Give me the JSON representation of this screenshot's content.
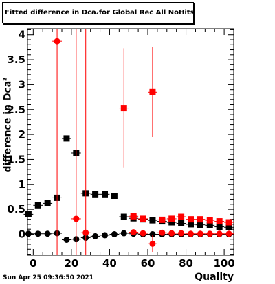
{
  "chart_data": {
    "type": "scatter",
    "title": "Fitted difference in Dca",
    "title_subscript": "z",
    "title_suffix": " for Global Rec All NoHits",
    "ylabel": "difference in Dca",
    "ylabel_subscript": "z",
    "xlabel": "Quality",
    "xlim": [
      -3,
      105
    ],
    "ylim": [
      -0.42,
      4.12
    ],
    "x_ticks": [
      "0",
      "20",
      "40",
      "60",
      "80",
      "100"
    ],
    "y_ticks": [
      "0",
      "0.5",
      "1",
      "1.5",
      "2",
      "2.5",
      "3",
      "3.5",
      "4"
    ],
    "x_tick_values": [
      0,
      20,
      40,
      60,
      80,
      100
    ],
    "y_tick_values": [
      0,
      0.5,
      1,
      1.5,
      2,
      2.5,
      3,
      3.5,
      4
    ],
    "grid": false,
    "series": [
      {
        "color": "#000000",
        "marker": "square",
        "x": [
          -2.5,
          2.5,
          7.5,
          12.5,
          17.5,
          22.5,
          27.5,
          32.5,
          37.5,
          42.5,
          47.5,
          52.5,
          57.5,
          62.5,
          67.5,
          72.5,
          77.5,
          82.5,
          87.5,
          92.5,
          97.5,
          102.5
        ],
        "y": [
          0.4,
          0.58,
          0.62,
          0.73,
          1.92,
          1.63,
          0.82,
          0.8,
          0.8,
          0.77,
          0.35,
          0.32,
          0.3,
          0.28,
          0.26,
          0.24,
          0.22,
          0.2,
          0.19,
          0.18,
          0.15,
          0.14
        ],
        "yerr": [
          0.01,
          0.01,
          0.01,
          0.01,
          0.02,
          0.02,
          0.01,
          0.01,
          0.01,
          0.01,
          0.01,
          0.01,
          0.01,
          0.01,
          0.01,
          0.01,
          0.01,
          0.01,
          0.01,
          0.01,
          0.01,
          0.01
        ]
      },
      {
        "color": "#ff0000",
        "marker": "square",
        "x": [
          47.5,
          52.5,
          57.5,
          62.5,
          67.5,
          72.5,
          77.5,
          82.5,
          87.5,
          92.5,
          97.5,
          102.5
        ],
        "y": [
          2.53,
          0.36,
          0.31,
          2.85,
          0.29,
          0.31,
          0.35,
          0.3,
          0.3,
          0.28,
          0.26,
          0.24
        ],
        "yerr": [
          1.2,
          0.03,
          0.02,
          0.9,
          0.02,
          0.02,
          0.02,
          0.02,
          0.02,
          0.02,
          0.02,
          0.02
        ]
      },
      {
        "color": "#000000",
        "marker": "circle",
        "x": [
          -2.5,
          2.5,
          7.5,
          12.5,
          17.5,
          22.5,
          27.5,
          32.5,
          37.5,
          42.5,
          47.5,
          52.5,
          57.5,
          62.5,
          67.5,
          72.5,
          77.5,
          82.5,
          87.5,
          92.5,
          97.5,
          102.5
        ],
        "y": [
          0.01,
          0.01,
          0.01,
          0.02,
          -0.11,
          -0.1,
          -0.07,
          -0.04,
          -0.02,
          0.0,
          0.02,
          0.01,
          0.0,
          0.0,
          0.0,
          0.0,
          0.0,
          0.0,
          0.0,
          0.0,
          0.0,
          0.0
        ],
        "yerr": [
          0.01,
          0.01,
          0.01,
          0.01,
          0.02,
          0.02,
          0.02,
          0.01,
          0.01,
          0.01,
          0.01,
          0.01,
          0.01,
          0.01,
          0.01,
          0.01,
          0.01,
          0.01,
          0.01,
          0.01,
          0.01,
          0.01
        ]
      },
      {
        "color": "#ff0000",
        "marker": "circle",
        "x": [
          12.5,
          22.5,
          27.5,
          52.5,
          57.5,
          62.5,
          67.5,
          72.5,
          77.5,
          82.5,
          87.5,
          92.5,
          97.5,
          102.5
        ],
        "y": [
          3.87,
          0.31,
          0.03,
          0.04,
          0.02,
          -0.19,
          0.03,
          0.02,
          0.02,
          0.01,
          0.01,
          0.01,
          0.01,
          0.01
        ],
        "yerr": [
          5.0,
          5.0,
          5.0,
          0.02,
          0.02,
          0.17,
          0.02,
          0.02,
          0.02,
          0.02,
          0.02,
          0.02,
          0.02,
          0.02
        ]
      }
    ]
  },
  "footer": {
    "date": "Sun Apr 25 09:36:50 2021"
  }
}
